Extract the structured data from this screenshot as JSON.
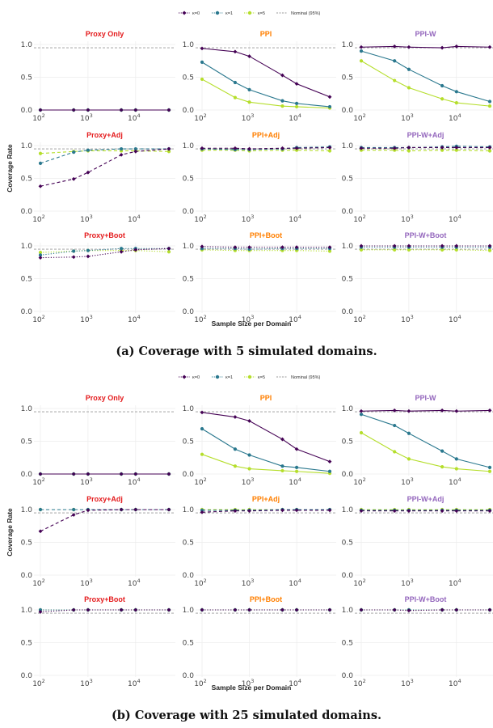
{
  "colors": {
    "k0": "#440154",
    "k1": "#2a788e",
    "k5": "#b5de2b",
    "nominal": "#999999",
    "proxy_title": "#e41a1c",
    "ppi_title": "#ff7f00",
    "ppiw_title": "#9467bd",
    "grid": "#ececec"
  },
  "chart_data": [
    {
      "type": "line",
      "caption": "(a) Coverage with 5 simulated domains.",
      "legend": [
        "κ=0",
        "κ=1",
        "κ=5",
        "Nominal (95%)"
      ],
      "ylabel": "Coverage Rate",
      "xlabel": "Sample Size per Domain",
      "x_scale": "log",
      "x": [
        100,
        500,
        1000,
        5000,
        10000,
        50000
      ],
      "nominal": 0.95,
      "panels": [
        {
          "title": "Proxy Only",
          "style": "solid",
          "series": [
            {
              "kappa": "k0",
              "y": [
                0,
                0,
                0,
                0,
                0,
                0
              ]
            },
            {
              "kappa": "k1",
              "y": [
                0,
                0,
                0,
                0,
                0,
                0
              ]
            },
            {
              "kappa": "k5",
              "y": [
                0,
                0,
                0,
                0,
                0,
                0
              ]
            }
          ]
        },
        {
          "title": "PPI",
          "style": "solid",
          "series": [
            {
              "kappa": "k0",
              "y": [
                0.94,
                0.89,
                0.82,
                0.53,
                0.4,
                0.2
              ]
            },
            {
              "kappa": "k1",
              "y": [
                0.73,
                0.42,
                0.31,
                0.14,
                0.1,
                0.05
              ]
            },
            {
              "kappa": "k5",
              "y": [
                0.47,
                0.19,
                0.12,
                0.06,
                0.05,
                0.03
              ]
            }
          ]
        },
        {
          "title": "PPI-W",
          "style": "solid",
          "series": [
            {
              "kappa": "k0",
              "y": [
                0.96,
                0.97,
                0.96,
                0.95,
                0.97,
                0.96
              ]
            },
            {
              "kappa": "k1",
              "y": [
                0.9,
                0.75,
                0.62,
                0.37,
                0.28,
                0.13
              ]
            },
            {
              "kappa": "k5",
              "y": [
                0.75,
                0.45,
                0.34,
                0.17,
                0.11,
                0.06
              ]
            }
          ]
        },
        {
          "title": "Proxy+Adj",
          "style": "dashed",
          "series": [
            {
              "kappa": "k0",
              "y": [
                0.38,
                0.49,
                0.59,
                0.86,
                0.91,
                0.95
              ]
            },
            {
              "kappa": "k1",
              "y": [
                0.73,
                0.9,
                0.93,
                0.95,
                0.95,
                0.95
              ]
            },
            {
              "kappa": "k5",
              "y": [
                0.88,
                0.91,
                0.92,
                0.92,
                0.92,
                0.91
              ]
            }
          ]
        },
        {
          "title": "PPI+Adj",
          "style": "dashed",
          "series": [
            {
              "kappa": "k0",
              "y": [
                0.96,
                0.96,
                0.95,
                0.96,
                0.96,
                0.97
              ]
            },
            {
              "kappa": "k1",
              "y": [
                0.95,
                0.94,
                0.94,
                0.95,
                0.97,
                0.98
              ]
            },
            {
              "kappa": "k5",
              "y": [
                0.93,
                0.93,
                0.92,
                0.93,
                0.93,
                0.92
              ]
            }
          ]
        },
        {
          "title": "PPI-W+Adj",
          "style": "dashed",
          "series": [
            {
              "kappa": "k0",
              "y": [
                0.96,
                0.96,
                0.97,
                0.97,
                0.97,
                0.97
              ]
            },
            {
              "kappa": "k1",
              "y": [
                0.97,
                0.97,
                0.97,
                0.98,
                0.99,
                0.98
              ]
            },
            {
              "kappa": "k5",
              "y": [
                0.93,
                0.93,
                0.92,
                0.93,
                0.93,
                0.92
              ]
            }
          ]
        },
        {
          "title": "Proxy+Boot",
          "style": "dotted",
          "series": [
            {
              "kappa": "k0",
              "y": [
                0.82,
                0.83,
                0.84,
                0.91,
                0.94,
                0.96
              ]
            },
            {
              "kappa": "k1",
              "y": [
                0.86,
                0.92,
                0.93,
                0.96,
                0.96,
                0.96
              ]
            },
            {
              "kappa": "k5",
              "y": [
                0.9,
                0.92,
                0.93,
                0.93,
                0.93,
                0.91
              ]
            }
          ]
        },
        {
          "title": "PPI+Boot",
          "style": "dotted",
          "series": [
            {
              "kappa": "k0",
              "y": [
                0.99,
                0.98,
                0.98,
                0.98,
                0.98,
                0.98
              ]
            },
            {
              "kappa": "k1",
              "y": [
                0.96,
                0.96,
                0.95,
                0.96,
                0.96,
                0.96
              ]
            },
            {
              "kappa": "k5",
              "y": [
                0.94,
                0.93,
                0.93,
                0.93,
                0.93,
                0.92
              ]
            }
          ]
        },
        {
          "title": "PPI-W+Boot",
          "style": "dotted",
          "series": [
            {
              "kappa": "k0",
              "y": [
                1.0,
                1.0,
                1.0,
                1.0,
                1.0,
                1.0
              ]
            },
            {
              "kappa": "k1",
              "y": [
                0.98,
                0.98,
                0.98,
                0.98,
                0.98,
                0.98
              ]
            },
            {
              "kappa": "k5",
              "y": [
                0.94,
                0.94,
                0.94,
                0.94,
                0.94,
                0.93
              ]
            }
          ]
        }
      ]
    },
    {
      "type": "line",
      "caption": "(b) Coverage with 25 simulated domains.",
      "legend": [
        "κ=0",
        "κ=1",
        "κ=5",
        "Nominal (95%)"
      ],
      "ylabel": "Coverage Rate",
      "xlabel": "Sample Size per Domain",
      "x_scale": "log",
      "x": [
        100,
        500,
        1000,
        5000,
        10000,
        50000
      ],
      "nominal": 0.95,
      "panels": [
        {
          "title": "Proxy Only",
          "style": "solid",
          "series": [
            {
              "kappa": "k0",
              "y": [
                0,
                0,
                0,
                0,
                0,
                0
              ]
            },
            {
              "kappa": "k1",
              "y": [
                0,
                0,
                0,
                0,
                0,
                0
              ]
            },
            {
              "kappa": "k5",
              "y": [
                0,
                0,
                0,
                0,
                0,
                0
              ]
            }
          ]
        },
        {
          "title": "PPI",
          "style": "solid",
          "series": [
            {
              "kappa": "k0",
              "y": [
                0.94,
                0.87,
                0.81,
                0.53,
                0.38,
                0.19
              ]
            },
            {
              "kappa": "k1",
              "y": [
                0.69,
                0.38,
                0.29,
                0.12,
                0.1,
                0.04
              ]
            },
            {
              "kappa": "k5",
              "y": [
                0.3,
                0.12,
                0.08,
                0.05,
                0.04,
                0.01
              ]
            }
          ]
        },
        {
          "title": "PPI-W",
          "style": "solid",
          "series": [
            {
              "kappa": "k0",
              "y": [
                0.96,
                0.97,
                0.96,
                0.97,
                0.96,
                0.97
              ]
            },
            {
              "kappa": "k1",
              "y": [
                0.91,
                0.74,
                0.62,
                0.35,
                0.23,
                0.1
              ]
            },
            {
              "kappa": "k5",
              "y": [
                0.63,
                0.34,
                0.23,
                0.11,
                0.08,
                0.04
              ]
            }
          ]
        },
        {
          "title": "Proxy+Adj",
          "style": "dashed",
          "series": [
            {
              "kappa": "k0",
              "y": [
                0.67,
                0.92,
                0.99,
                1.0,
                1.0,
                1.0
              ]
            },
            {
              "kappa": "k1",
              "y": [
                1.0,
                1.0,
                1.0,
                1.0,
                1.0,
                1.0
              ]
            },
            {
              "kappa": "k5",
              "y": [
                1.0,
                1.0,
                1.0,
                1.0,
                1.0,
                1.0
              ]
            }
          ]
        },
        {
          "title": "PPI+Adj",
          "style": "dashed",
          "series": [
            {
              "kappa": "k0",
              "y": [
                0.96,
                0.98,
                0.98,
                0.99,
                0.99,
                0.99
              ]
            },
            {
              "kappa": "k1",
              "y": [
                0.99,
                0.99,
                0.99,
                1.0,
                1.0,
                1.0
              ]
            },
            {
              "kappa": "k5",
              "y": [
                1.0,
                1.0,
                1.0,
                1.0,
                1.0,
                1.0
              ]
            }
          ]
        },
        {
          "title": "PPI-W+Adj",
          "style": "dashed",
          "series": [
            {
              "kappa": "k0",
              "y": [
                0.98,
                0.98,
                0.98,
                0.98,
                0.98,
                0.98
              ]
            },
            {
              "kappa": "k1",
              "y": [
                0.99,
                0.99,
                0.99,
                0.99,
                0.99,
                0.99
              ]
            },
            {
              "kappa": "k5",
              "y": [
                1.0,
                1.0,
                1.0,
                1.0,
                1.0,
                1.0
              ]
            }
          ]
        },
        {
          "title": "Proxy+Boot",
          "style": "dotted",
          "series": [
            {
              "kappa": "k0",
              "y": [
                0.97,
                1.0,
                1.0,
                1.0,
                1.0,
                1.0
              ]
            },
            {
              "kappa": "k1",
              "y": [
                1.0,
                1.0,
                1.0,
                1.0,
                1.0,
                1.0
              ]
            },
            {
              "kappa": "k5",
              "y": [
                1.0,
                1.0,
                1.0,
                1.0,
                1.0,
                1.0
              ]
            }
          ]
        },
        {
          "title": "PPI+Boot",
          "style": "dotted",
          "series": [
            {
              "kappa": "k0",
              "y": [
                1.0,
                1.0,
                1.0,
                1.0,
                1.0,
                1.0
              ]
            },
            {
              "kappa": "k1",
              "y": [
                1.0,
                1.0,
                1.0,
                1.0,
                1.0,
                1.0
              ]
            },
            {
              "kappa": "k5",
              "y": [
                1.0,
                1.0,
                1.0,
                1.0,
                1.0,
                1.0
              ]
            }
          ]
        },
        {
          "title": "PPI-W+Boot",
          "style": "dotted",
          "series": [
            {
              "kappa": "k0",
              "y": [
                1.0,
                1.0,
                0.99,
                1.0,
                1.0,
                1.0
              ]
            },
            {
              "kappa": "k1",
              "y": [
                1.0,
                1.0,
                1.0,
                1.0,
                1.0,
                1.0
              ]
            },
            {
              "kappa": "k5",
              "y": [
                1.0,
                1.0,
                1.0,
                1.0,
                1.0,
                1.0
              ]
            }
          ]
        }
      ]
    }
  ]
}
